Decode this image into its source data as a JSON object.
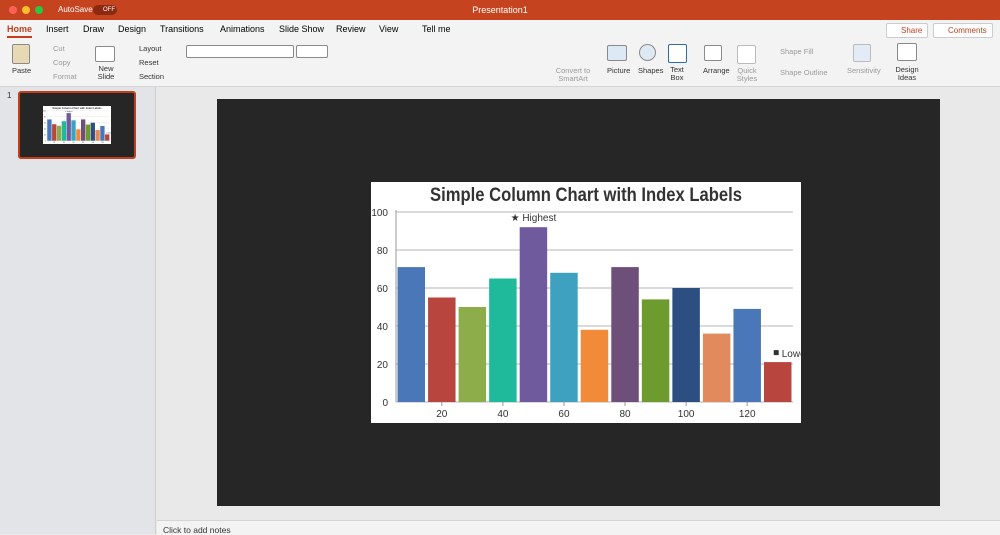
{
  "window": {
    "title": "Presentation1",
    "autosave": "AutoSave",
    "autosave_state": "OFF"
  },
  "tabs": [
    "Home",
    "Insert",
    "Draw",
    "Design",
    "Transitions",
    "Animations",
    "Slide Show",
    "Review",
    "View"
  ],
  "tell_me": "Tell me",
  "share": "Share",
  "comments": "Comments",
  "ribbon": {
    "paste": "Paste",
    "cut": "Cut",
    "copy": "Copy",
    "format": "Format",
    "new_slide": "New Slide",
    "layout": "Layout",
    "reset": "Reset",
    "section": "Section",
    "convert_smartart": "Convert to SmartArt",
    "picture": "Picture",
    "shapes": "Shapes",
    "text_box": "Text Box",
    "arrange": "Arrange",
    "quick_styles": "Quick Styles",
    "shape_fill": "Shape Fill",
    "shape_outline": "Shape Outline",
    "sensitivity": "Sensitivity",
    "design_ideas": "Design Ideas"
  },
  "thumbnail": {
    "number": "1"
  },
  "notes": "Click to add notes",
  "chart_data": {
    "type": "bar",
    "title": "Simple Column Chart with Index Labels",
    "x": [
      10,
      20,
      30,
      40,
      50,
      60,
      70,
      80,
      90,
      100,
      110,
      120,
      130
    ],
    "values": [
      71,
      55,
      50,
      65,
      92,
      68,
      38,
      71,
      54,
      60,
      36,
      49,
      21
    ],
    "colors": [
      "#4a77b8",
      "#b8453e",
      "#8cad4a",
      "#1fb99c",
      "#6f5a9e",
      "#3ea1bf",
      "#f18b3a",
      "#6e4f79",
      "#6d9b2e",
      "#2c4e80",
      "#e08a5e",
      "#4a77b8",
      "#b8453e"
    ],
    "xlim": [
      5,
      135
    ],
    "xticks": [
      20,
      40,
      60,
      80,
      100,
      120
    ],
    "ylim": [
      0,
      100
    ],
    "yticks": [
      0,
      20,
      40,
      60,
      80,
      100
    ],
    "grid": true,
    "highest_label": "★ Highest",
    "lowest_label": "Lowest"
  }
}
